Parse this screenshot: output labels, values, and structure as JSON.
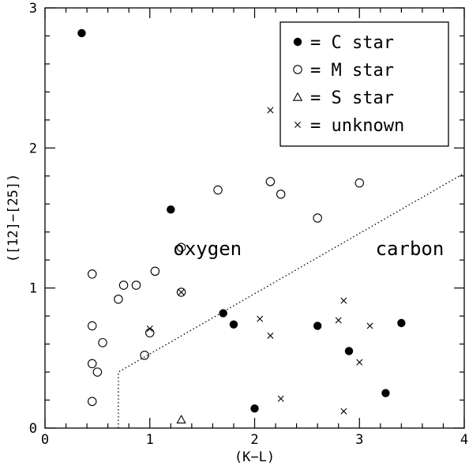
{
  "chart_data": {
    "type": "scatter",
    "xlabel": "(K−L)",
    "ylabel": "([12]−[25])",
    "xlim": [
      0,
      4
    ],
    "ylim": [
      0,
      3
    ],
    "x_ticks": [
      "0",
      "1",
      "2",
      "3",
      "4"
    ],
    "y_ticks": [
      "0",
      "1",
      "2",
      "3"
    ],
    "legend": {
      "placement": "top-right",
      "entries": [
        {
          "marker": "filled-circle",
          "label": "= C star"
        },
        {
          "marker": "open-circle",
          "label": "= M star"
        },
        {
          "marker": "triangle",
          "label": "= S star"
        },
        {
          "marker": "cross",
          "label": "= unknown"
        }
      ]
    },
    "annotations": [
      {
        "text": "oxygen",
        "x": 1.55,
        "y": 1.28
      },
      {
        "text": "carbon",
        "x": 3.48,
        "y": 1.28
      }
    ],
    "boundary": {
      "style": "dotted",
      "points": [
        [
          0.7,
          0
        ],
        [
          0.7,
          0.4
        ],
        [
          4.0,
          1.82
        ]
      ]
    },
    "series": [
      {
        "name": "C star",
        "marker": "filled-circle",
        "points": [
          [
            0.35,
            2.82
          ],
          [
            1.2,
            1.56
          ],
          [
            1.7,
            0.82
          ],
          [
            1.8,
            0.74
          ],
          [
            2.6,
            0.73
          ],
          [
            2.9,
            0.55
          ],
          [
            3.4,
            0.75
          ],
          [
            3.25,
            0.25
          ],
          [
            2.0,
            0.14
          ]
        ]
      },
      {
        "name": "M star",
        "marker": "open-circle",
        "points": [
          [
            0.45,
            1.1
          ],
          [
            0.7,
            0.92
          ],
          [
            0.75,
            1.02
          ],
          [
            0.87,
            1.02
          ],
          [
            1.05,
            1.12
          ],
          [
            1.3,
            1.29
          ],
          [
            1.65,
            1.7
          ],
          [
            2.15,
            1.76
          ],
          [
            2.25,
            1.67
          ],
          [
            2.6,
            1.5
          ],
          [
            3.0,
            1.75
          ],
          [
            1.3,
            0.97
          ],
          [
            0.45,
            0.73
          ],
          [
            0.55,
            0.61
          ],
          [
            0.45,
            0.46
          ],
          [
            0.5,
            0.4
          ],
          [
            0.45,
            0.19
          ],
          [
            0.95,
            0.52
          ],
          [
            1.0,
            0.68
          ]
        ]
      },
      {
        "name": "S star",
        "marker": "triangle",
        "points": [
          [
            1.3,
            0.06
          ]
        ]
      },
      {
        "name": "unknown",
        "marker": "cross",
        "points": [
          [
            2.15,
            2.27
          ],
          [
            1.3,
            0.97
          ],
          [
            1.0,
            0.71
          ],
          [
            2.05,
            0.78
          ],
          [
            2.15,
            0.66
          ],
          [
            2.8,
            0.77
          ],
          [
            2.85,
            0.91
          ],
          [
            3.1,
            0.73
          ],
          [
            3.0,
            0.47
          ],
          [
            2.25,
            0.21
          ],
          [
            2.85,
            0.12
          ]
        ]
      }
    ]
  }
}
